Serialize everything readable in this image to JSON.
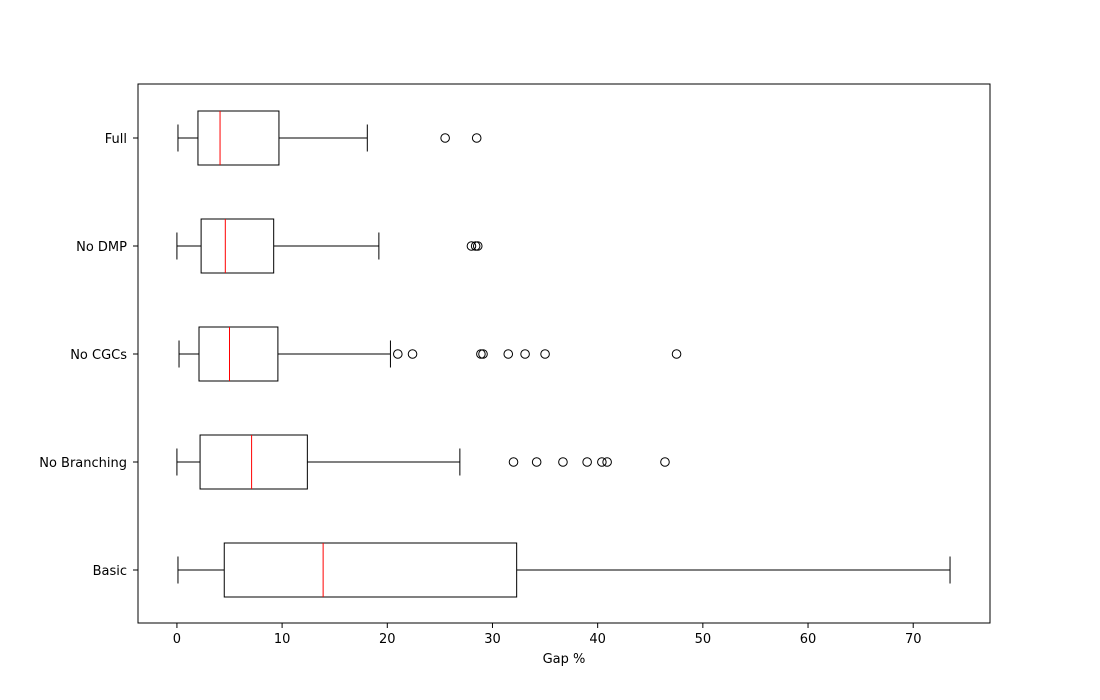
{
  "chart_data": {
    "type": "boxplot",
    "orientation": "horizontal",
    "title": "",
    "xlabel": "Gap %",
    "ylabel": "",
    "xlim": [
      -3.7,
      77.3
    ],
    "xticks": [
      0,
      10,
      20,
      30,
      40,
      50,
      60,
      70
    ],
    "grid": false,
    "median_color": "#ff0000",
    "box_color": "#000000",
    "categories": [
      "Full",
      "No DMP",
      "No CGCs",
      "No Branching",
      "Basic"
    ],
    "series": [
      {
        "category": "Full",
        "whisker_low": 0.1,
        "q1": 2.0,
        "median": 4.1,
        "q3": 9.7,
        "whisker_high": 18.1,
        "outliers": [
          25.5,
          28.5
        ]
      },
      {
        "category": "No DMP",
        "whisker_low": 0.0,
        "q1": 2.3,
        "median": 4.6,
        "q3": 9.2,
        "whisker_high": 19.2,
        "outliers": [
          28.0,
          28.4,
          28.6
        ]
      },
      {
        "category": "No CGCs",
        "whisker_low": 0.2,
        "q1": 2.1,
        "median": 5.0,
        "q3": 9.6,
        "whisker_high": 20.3,
        "outliers": [
          21.0,
          22.4,
          28.9,
          29.1,
          31.5,
          33.1,
          35.0,
          47.5
        ]
      },
      {
        "category": "No Branching",
        "whisker_low": 0.0,
        "q1": 2.2,
        "median": 7.1,
        "q3": 12.4,
        "whisker_high": 26.9,
        "outliers": [
          32.0,
          34.2,
          36.7,
          39.0,
          40.4,
          40.9,
          46.4
        ]
      },
      {
        "category": "Basic",
        "whisker_low": 0.1,
        "q1": 4.5,
        "median": 13.9,
        "q3": 32.3,
        "whisker_high": 73.5,
        "outliers": []
      }
    ]
  }
}
